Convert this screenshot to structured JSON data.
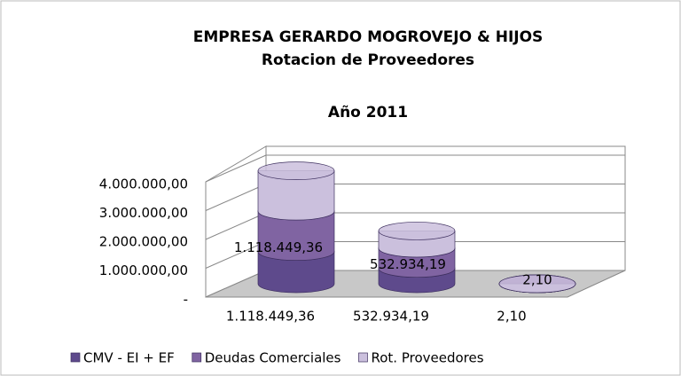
{
  "chart_data": {
    "type": "cylinder3d_stacked",
    "title_lines": [
      "EMPRESA GERARDO MOGROVEJO & HIJOS",
      "Rotacion de Proveedores",
      "Año 2011"
    ],
    "categories": [
      "1.118.449,36",
      "532.934,19",
      "2,10"
    ],
    "series": [
      {
        "name": "CMV - EI + EF",
        "color": "#5e4a8c",
        "values": [
          1118449.36,
          532934.19,
          2.1
        ],
        "value_labels": [
          "1.118.449,36",
          "532.934,19",
          "2,10"
        ]
      },
      {
        "name": "Deudas Comerciales",
        "color": "#8064a2",
        "values": [
          1400000,
          700000,
          0
        ]
      },
      {
        "name": "Rot. Proveedores",
        "color": "#cbc0dd",
        "values": [
          1400000,
          600000,
          0
        ]
      }
    ],
    "ylim": [
      0,
      4000000
    ],
    "yticks": [
      {
        "value": 0,
        "label": "-"
      },
      {
        "value": 1000000,
        "label": "1.000.000,00"
      },
      {
        "value": 2000000,
        "label": "2.000.000,00"
      },
      {
        "value": 3000000,
        "label": "3.000.000,00"
      },
      {
        "value": 4000000,
        "label": "4.000.000,00"
      }
    ],
    "grid": true,
    "legend": "bottom"
  }
}
